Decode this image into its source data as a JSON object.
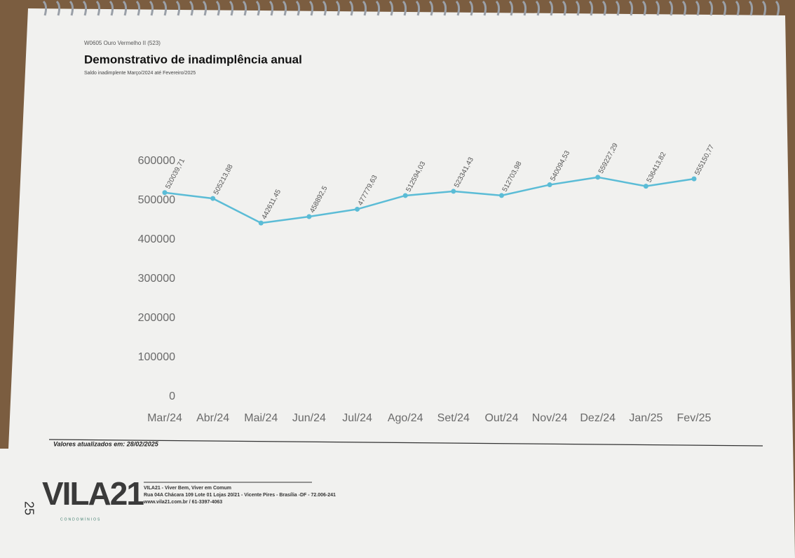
{
  "header": {
    "code": "W0605 Ouro Vermelho II (523)",
    "title": "Demonstrativo de inadimplência anual",
    "subtitle": "Saldo inadimplente Março/2024 até Fevereiro/2025"
  },
  "chart_data": {
    "type": "line",
    "categories": [
      "Mar/24",
      "Abr/24",
      "Mai/24",
      "Jun/24",
      "Jul/24",
      "Ago/24",
      "Set/24",
      "Out/24",
      "Nov/24",
      "Dez/24",
      "Jan/25",
      "Fev/25"
    ],
    "values": [
      520039.71,
      505213.88,
      442611.45,
      458892.5,
      477779.63,
      512594.03,
      523341.43,
      512703.98,
      540094.53,
      559227.29,
      536413.82,
      555150.77
    ],
    "value_labels": [
      "520039,71",
      "505213,88",
      "442611,45",
      "458892,5",
      "477779,63",
      "512594,03",
      "523341,43",
      "512703,98",
      "540094,53",
      "559227,29",
      "536413,82",
      "555150,77"
    ],
    "color": "#5bbcd6",
    "ylim": [
      0,
      600000
    ],
    "yticks": [
      0,
      100000,
      200000,
      300000,
      400000,
      500000,
      600000
    ],
    "grid": false
  },
  "footer": {
    "updated": "Valores atualizados em: 28/02/2025",
    "logo": "VILA21",
    "logo_sub": "CONDOMÍNIOS",
    "company": "VILA21 - Viver Bem, Viver em Comum",
    "address": "Rua 04A Chácara 109 Lote 01 Lojas 20/21 - Vicente Pires - Brasília -DF - 72.006-241",
    "contact": "www.vila21.com.br / 61-3397-4063",
    "page": "25"
  }
}
